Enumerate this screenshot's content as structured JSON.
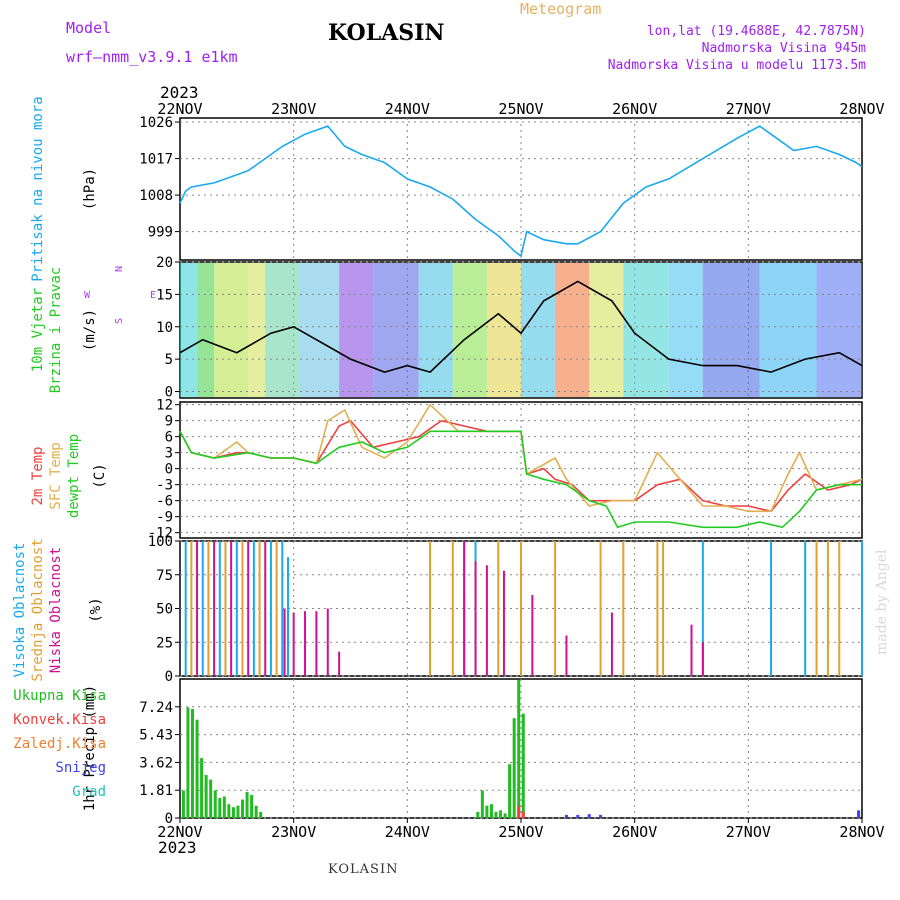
{
  "header": {
    "model_label": "Model",
    "model_name": "wrf—nmm_v3.9.1 e1km",
    "station": "KOLASIN",
    "meteogram_label": "Meteogram",
    "lonlat": "lon,lat (19.4688E, 42.7875N)",
    "altitude": "Nadmorska Visina 945m",
    "model_altitude": "Nadmorska Visina u modelu 1173.5m",
    "year_top": "2023",
    "year_bottom": "2023"
  },
  "footer": {
    "station": "KOLASIN",
    "credit": "made by Angel"
  },
  "colors": {
    "pressure": "#1aa9f0",
    "wind_label": "#22cc22",
    "temp_2m": "#f04040",
    "temp_sfc": "#e0b050",
    "dewpt": "#22cc22",
    "high_cloud": "#1aa9f0",
    "mid_cloud": "#e0a030",
    "low_cloud": "#d01090",
    "total_precip": "#22bb22",
    "conv_precip": "#f04040",
    "frozen_precip": "#f08030",
    "snow": "#4040f0",
    "graupel": "#20c0c0"
  },
  "chart_data": [
    {
      "type": "line",
      "panel": "pressure",
      "ylabels": [
        "Pritisak na nivou mora",
        "(hPa)"
      ],
      "x_ticks": [
        "22NOV",
        "23NOV",
        "24NOV",
        "25NOV",
        "26NOV",
        "27NOV",
        "28NOV"
      ],
      "y_ticks": [
        999,
        1008,
        1017,
        1026
      ],
      "ylim": [
        992,
        1027
      ],
      "series": [
        {
          "x": [
            0,
            0.05,
            0.1,
            0.3,
            0.6,
            0.9,
            1.1,
            1.3,
            1.45,
            1.6,
            1.8,
            2.0,
            2.2,
            2.4,
            2.6,
            2.8,
            2.95,
            3.0,
            3.05,
            3.2,
            3.4,
            3.5,
            3.7,
            3.9,
            4.1,
            4.3,
            4.6,
            4.9,
            5.1,
            5.25,
            5.4,
            5.6,
            5.8,
            5.95,
            6.0
          ],
          "y": [
            1006,
            1009,
            1010,
            1011,
            1014,
            1020,
            1023,
            1025,
            1020,
            1018,
            1016,
            1012,
            1010,
            1007,
            1002,
            998,
            994,
            993,
            999,
            997,
            996,
            996,
            999,
            1006,
            1010,
            1012,
            1017,
            1022,
            1025,
            1022,
            1019,
            1020,
            1018,
            1016,
            1015
          ]
        }
      ],
      "grid": true
    },
    {
      "type": "line",
      "panel": "wind",
      "ylabels": [
        "10m Vjetar",
        "Brzina i Pravac",
        "(m/s)"
      ],
      "compass_labels": [
        "N",
        "W",
        "E",
        "S"
      ],
      "y_ticks": [
        0,
        5,
        10,
        15,
        20
      ],
      "ylim": [
        -1,
        20
      ],
      "series": [
        {
          "name": "speed",
          "x": [
            0,
            0.2,
            0.5,
            0.8,
            1.0,
            1.2,
            1.5,
            1.8,
            2.0,
            2.2,
            2.5,
            2.8,
            3.0,
            3.2,
            3.5,
            3.8,
            4.0,
            4.3,
            4.6,
            4.9,
            5.2,
            5.5,
            5.8,
            6.0
          ],
          "y": [
            6,
            8,
            6,
            9,
            10,
            8,
            5,
            3,
            4,
            3,
            8,
            12,
            9,
            14,
            17,
            14,
            9,
            5,
            4,
            4,
            3,
            5,
            6,
            4
          ]
        }
      ],
      "grid": true
    },
    {
      "type": "line",
      "panel": "temperature",
      "ylabels": [
        "2m Temp",
        "SFC Temp",
        "dewpt Temp",
        "(C)"
      ],
      "y_ticks": [
        -12,
        -9,
        -6,
        -3,
        0,
        3,
        6,
        9,
        12
      ],
      "ylim": [
        -13,
        12.5
      ],
      "series": [
        {
          "name": "2m Temp",
          "x": [
            0,
            0.1,
            0.3,
            0.5,
            0.6,
            0.8,
            1.0,
            1.2,
            1.4,
            1.5,
            1.7,
            1.9,
            2.1,
            2.3,
            2.5,
            2.7,
            2.9,
            3.0,
            3.05,
            3.2,
            3.3,
            3.45,
            3.6,
            3.8,
            4.0,
            4.2,
            4.4,
            4.6,
            4.8,
            5.0,
            5.2,
            5.35,
            5.5,
            5.7,
            5.9,
            6.0
          ],
          "y": [
            7,
            3,
            2,
            3,
            3,
            2,
            2,
            1,
            8,
            9,
            4,
            5,
            6,
            9,
            8,
            7,
            7,
            7,
            -1,
            0,
            -2,
            -3,
            -6,
            -6,
            -6,
            -3,
            -2,
            -6,
            -7,
            -7,
            -8,
            -4,
            -1,
            -4,
            -3,
            -2
          ]
        },
        {
          "name": "SFC Temp",
          "x": [
            0,
            0.1,
            0.3,
            0.5,
            0.6,
            0.8,
            1.0,
            1.2,
            1.3,
            1.45,
            1.6,
            1.8,
            2.0,
            2.2,
            2.3,
            2.45,
            2.7,
            2.9,
            3.0,
            3.05,
            3.3,
            3.4,
            3.6,
            3.8,
            4.0,
            4.2,
            4.4,
            4.6,
            4.8,
            5.0,
            5.2,
            5.35,
            5.45,
            5.6,
            5.8,
            6.0
          ],
          "y": [
            7,
            3,
            2,
            5,
            3,
            2,
            2,
            1,
            9,
            11,
            4,
            2,
            5,
            12,
            10,
            7,
            7,
            7,
            7,
            -1,
            2,
            -2,
            -7,
            -6,
            -6,
            3,
            -2,
            -7,
            -7,
            -8,
            -8,
            -1,
            3,
            -4,
            -3,
            -2
          ]
        },
        {
          "name": "dewpt Temp",
          "x": [
            0,
            0.1,
            0.3,
            0.6,
            0.8,
            1.0,
            1.2,
            1.4,
            1.6,
            1.8,
            2.0,
            2.2,
            2.4,
            2.6,
            2.8,
            2.9,
            3.0,
            3.05,
            3.2,
            3.4,
            3.6,
            3.75,
            3.85,
            4.0,
            4.3,
            4.6,
            4.9,
            5.1,
            5.3,
            5.45,
            5.6,
            5.8,
            6.0
          ],
          "y": [
            7,
            3,
            2,
            3,
            2,
            2,
            1,
            4,
            5,
            3,
            4,
            7,
            7,
            7,
            7,
            7,
            7,
            -1,
            -2,
            -3,
            -6,
            -7,
            -11,
            -10,
            -10,
            -11,
            -11,
            -10,
            -11,
            -8,
            -4,
            -3,
            -3
          ]
        }
      ],
      "grid": true
    },
    {
      "type": "bar",
      "panel": "clouds",
      "ylabels": [
        "Visoka Oblacnost",
        "Srednja Oblacnost",
        "Niska Oblacnost",
        "(%)"
      ],
      "y_ticks": [
        0,
        25,
        50,
        75,
        100
      ],
      "ylim": [
        0,
        100
      ],
      "series": [
        {
          "name": "Visoka Oblacnost",
          "x": [
            0.05,
            0.2,
            0.35,
            0.5,
            0.65,
            0.8,
            0.9,
            0.95,
            2.5,
            2.6,
            4.6,
            5.2,
            5.5,
            6.0
          ],
          "values": [
            100,
            100,
            100,
            100,
            100,
            100,
            100,
            88,
            60,
            100,
            100,
            100,
            100,
            100
          ]
        },
        {
          "name": "Srednja Oblacnost",
          "x": [
            0.1,
            0.25,
            0.4,
            0.55,
            0.7,
            0.85,
            2.2,
            2.4,
            2.5,
            2.8,
            3.0,
            3.3,
            3.7,
            3.9,
            4.2,
            4.25,
            5.6,
            5.7,
            5.8
          ],
          "values": [
            100,
            100,
            100,
            100,
            100,
            100,
            100,
            100,
            100,
            100,
            100,
            100,
            100,
            100,
            100,
            100,
            100,
            100,
            100
          ]
        },
        {
          "name": "Niska Oblacnost",
          "x": [
            0.15,
            0.3,
            0.45,
            0.6,
            0.75,
            0.92,
            1.0,
            1.1,
            1.2,
            1.3,
            1.4,
            2.5,
            2.6,
            2.7,
            2.85,
            3.1,
            3.4,
            3.8,
            4.5,
            4.6
          ],
          "values": [
            100,
            100,
            100,
            100,
            100,
            50,
            47,
            48,
            48,
            50,
            18,
            100,
            85,
            82,
            78,
            60,
            30,
            47,
            38,
            25
          ]
        }
      ],
      "grid": true
    },
    {
      "type": "bar",
      "panel": "precipitation",
      "ylabels": [
        "1hr Precip (mm)"
      ],
      "legend": [
        "Ukupna Kisa",
        "Konvek.Kisa",
        "Zaledj.Kisa",
        "Snijeg",
        "Grad"
      ],
      "y_ticks": [
        0,
        1.81,
        3.62,
        5.43,
        7.24
      ],
      "ylim": [
        0,
        9.05
      ],
      "series": [
        {
          "name": "Ukupna Kisa",
          "x": [
            0.03,
            0.07,
            0.11,
            0.15,
            0.19,
            0.23,
            0.27,
            0.31,
            0.35,
            0.39,
            0.43,
            0.47,
            0.51,
            0.55,
            0.59,
            0.63,
            0.67,
            0.71,
            2.62,
            2.66,
            2.7,
            2.74,
            2.78,
            2.82,
            2.86,
            2.9,
            2.94,
            2.98,
            3.02
          ],
          "values": [
            1.8,
            7.2,
            7.1,
            6.4,
            3.9,
            2.8,
            2.5,
            1.8,
            1.3,
            1.4,
            0.9,
            0.7,
            0.8,
            1.2,
            1.7,
            1.5,
            0.8,
            0.4,
            0.4,
            1.8,
            0.8,
            0.9,
            0.4,
            0.5,
            0.3,
            3.5,
            6.5,
            9.0,
            6.8
          ]
        },
        {
          "name": "Snijeg",
          "x": [
            3.4,
            3.5,
            3.6,
            3.7,
            5.97
          ],
          "values": [
            0.2,
            0.2,
            0.25,
            0.2,
            0.5
          ]
        },
        {
          "name": "Konvek.Kisa",
          "x": [
            2.98,
            3.02
          ],
          "values": [
            0.8,
            0.4
          ]
        }
      ],
      "grid": true
    }
  ]
}
